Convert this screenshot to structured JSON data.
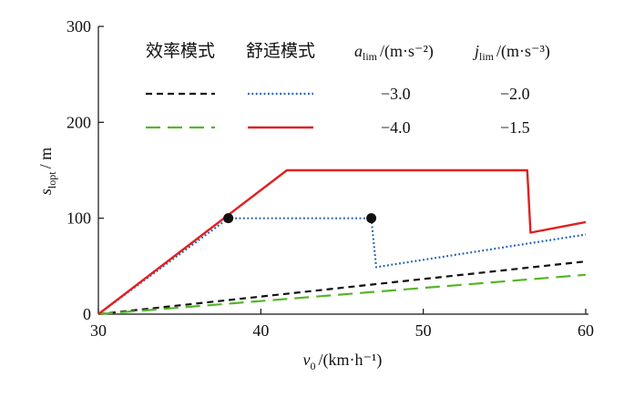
{
  "chart_data": {
    "type": "line",
    "xlabel": {
      "symbol": "v",
      "subscript": "0",
      "unit": "/(km·h⁻¹)"
    },
    "ylabel": {
      "symbol": "s",
      "subscript": "lopt",
      "unit": "/ m"
    },
    "xlim": [
      30,
      60
    ],
    "ylim": [
      0,
      300
    ],
    "xticks": [
      "30",
      "40",
      "50",
      "60"
    ],
    "yticks": [
      "0",
      "100",
      "200",
      "300"
    ],
    "grid": false,
    "legend": {
      "position": "top",
      "col_efficiency": "效率模式",
      "col_comfort": "舒适模式",
      "col_alim": {
        "symbol": "a",
        "subscript": "lim",
        "unit": "/(m·s⁻²)"
      },
      "col_jlim": {
        "symbol": "j",
        "subscript": "lim",
        "unit": "/(m·s⁻³)"
      },
      "rows": [
        {
          "alim": "−3.0",
          "jlim": "−2.0"
        },
        {
          "alim": "−4.0",
          "jlim": "−1.5"
        }
      ]
    },
    "series": [
      {
        "mode": "efficiency",
        "alim": -3.0,
        "jlim": -2.0,
        "color": "#111111",
        "style": "dashed",
        "x": [
          30,
          60
        ],
        "y": [
          0,
          55
        ]
      },
      {
        "mode": "efficiency",
        "alim": -4.0,
        "jlim": -1.5,
        "color": "#55b52a",
        "style": "longdash",
        "x": [
          30,
          60
        ],
        "y": [
          0,
          41
        ]
      },
      {
        "mode": "comfort",
        "alim": -3.0,
        "jlim": -2.0,
        "color": "#1f5fb4",
        "style": "dotted",
        "x": [
          30,
          38,
          46.8,
          47.1,
          60
        ],
        "y": [
          0,
          100,
          100,
          49,
          83
        ]
      },
      {
        "mode": "comfort",
        "alim": -4.0,
        "jlim": -1.5,
        "color": "#e02020",
        "style": "solid",
        "x": [
          30,
          41.6,
          56.4,
          56.6,
          60
        ],
        "y": [
          0,
          150,
          150,
          85,
          96
        ]
      }
    ],
    "markers": [
      {
        "x": 38,
        "y": 100
      },
      {
        "x": 46.8,
        "y": 100
      }
    ]
  }
}
